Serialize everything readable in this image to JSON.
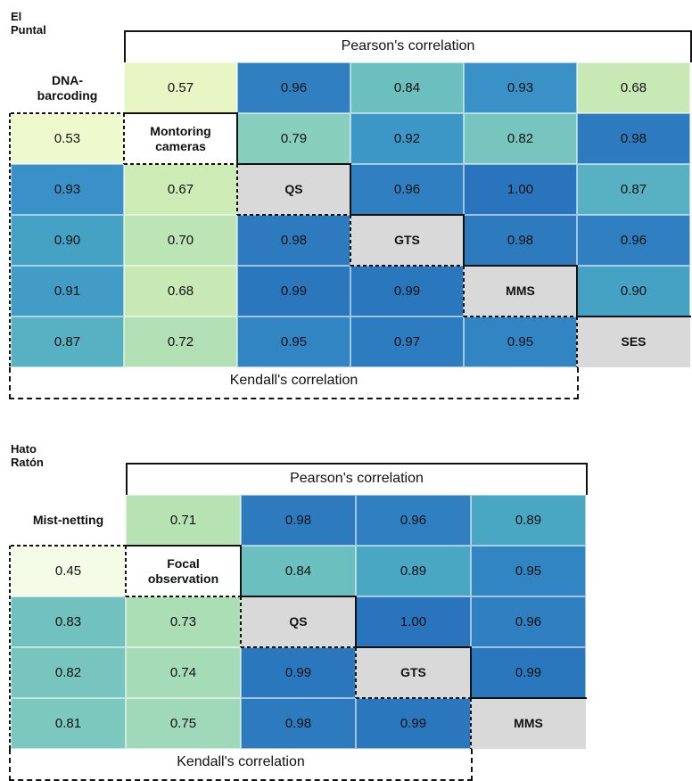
{
  "chart_data": [
    {
      "type": "heatmap",
      "title": "El Puntal",
      "upper_label": "Pearson's correlation",
      "lower_label": "Kendall's correlation",
      "methods": [
        "DNA-\nbarcoding",
        "Montoring\ncameras",
        "QS",
        "GTS",
        "MMS",
        "SES"
      ],
      "matrix": [
        [
          null,
          "0.57",
          "0.96",
          "0.84",
          "0.93",
          "0.68"
        ],
        [
          "0.53",
          null,
          "0.79",
          "0.92",
          "0.82",
          "0.98"
        ],
        [
          "0.93",
          "0.67",
          null,
          "0.96",
          "1.00",
          "0.87"
        ],
        [
          "0.90",
          "0.70",
          "0.98",
          null,
          "0.98",
          "0.96"
        ],
        [
          "0.91",
          "0.68",
          "0.99",
          "0.99",
          null,
          "0.90"
        ],
        [
          "0.87",
          "0.72",
          "0.95",
          "0.97",
          "0.95",
          null
        ]
      ]
    },
    {
      "type": "heatmap",
      "title": "Hato Ratón",
      "upper_label": "Pearson's correlation",
      "lower_label": "Kendall's correlation",
      "methods": [
        "Mist-netting",
        "Focal\nobservation",
        "QS",
        "GTS",
        "MMS"
      ],
      "matrix": [
        [
          null,
          "0.71",
          "0.98",
          "0.96",
          "0.89"
        ],
        [
          "0.45",
          null,
          "0.84",
          "0.89",
          "0.95"
        ],
        [
          "0.83",
          "0.73",
          null,
          "1.00",
          "0.96"
        ],
        [
          "0.82",
          "0.74",
          "0.99",
          null,
          "0.99"
        ],
        [
          "0.81",
          "0.75",
          "0.98",
          "0.99",
          null
        ]
      ]
    }
  ],
  "colors": {
    "scale_stops": [
      {
        "v": 0.45,
        "c": "#f4fce8"
      },
      {
        "v": 0.55,
        "c": "#ecf8c8"
      },
      {
        "v": 0.65,
        "c": "#d8efb6"
      },
      {
        "v": 0.72,
        "c": "#b2e0b4"
      },
      {
        "v": 0.78,
        "c": "#8cd1bd"
      },
      {
        "v": 0.84,
        "c": "#6cbfbf"
      },
      {
        "v": 0.89,
        "c": "#4aa7c4"
      },
      {
        "v": 0.93,
        "c": "#3991c7"
      },
      {
        "v": 0.96,
        "c": "#2f7fc1"
      },
      {
        "v": 1.0,
        "c": "#2a74bd"
      }
    ],
    "diagonal": "#d9d9d9",
    "text": "#111111"
  }
}
